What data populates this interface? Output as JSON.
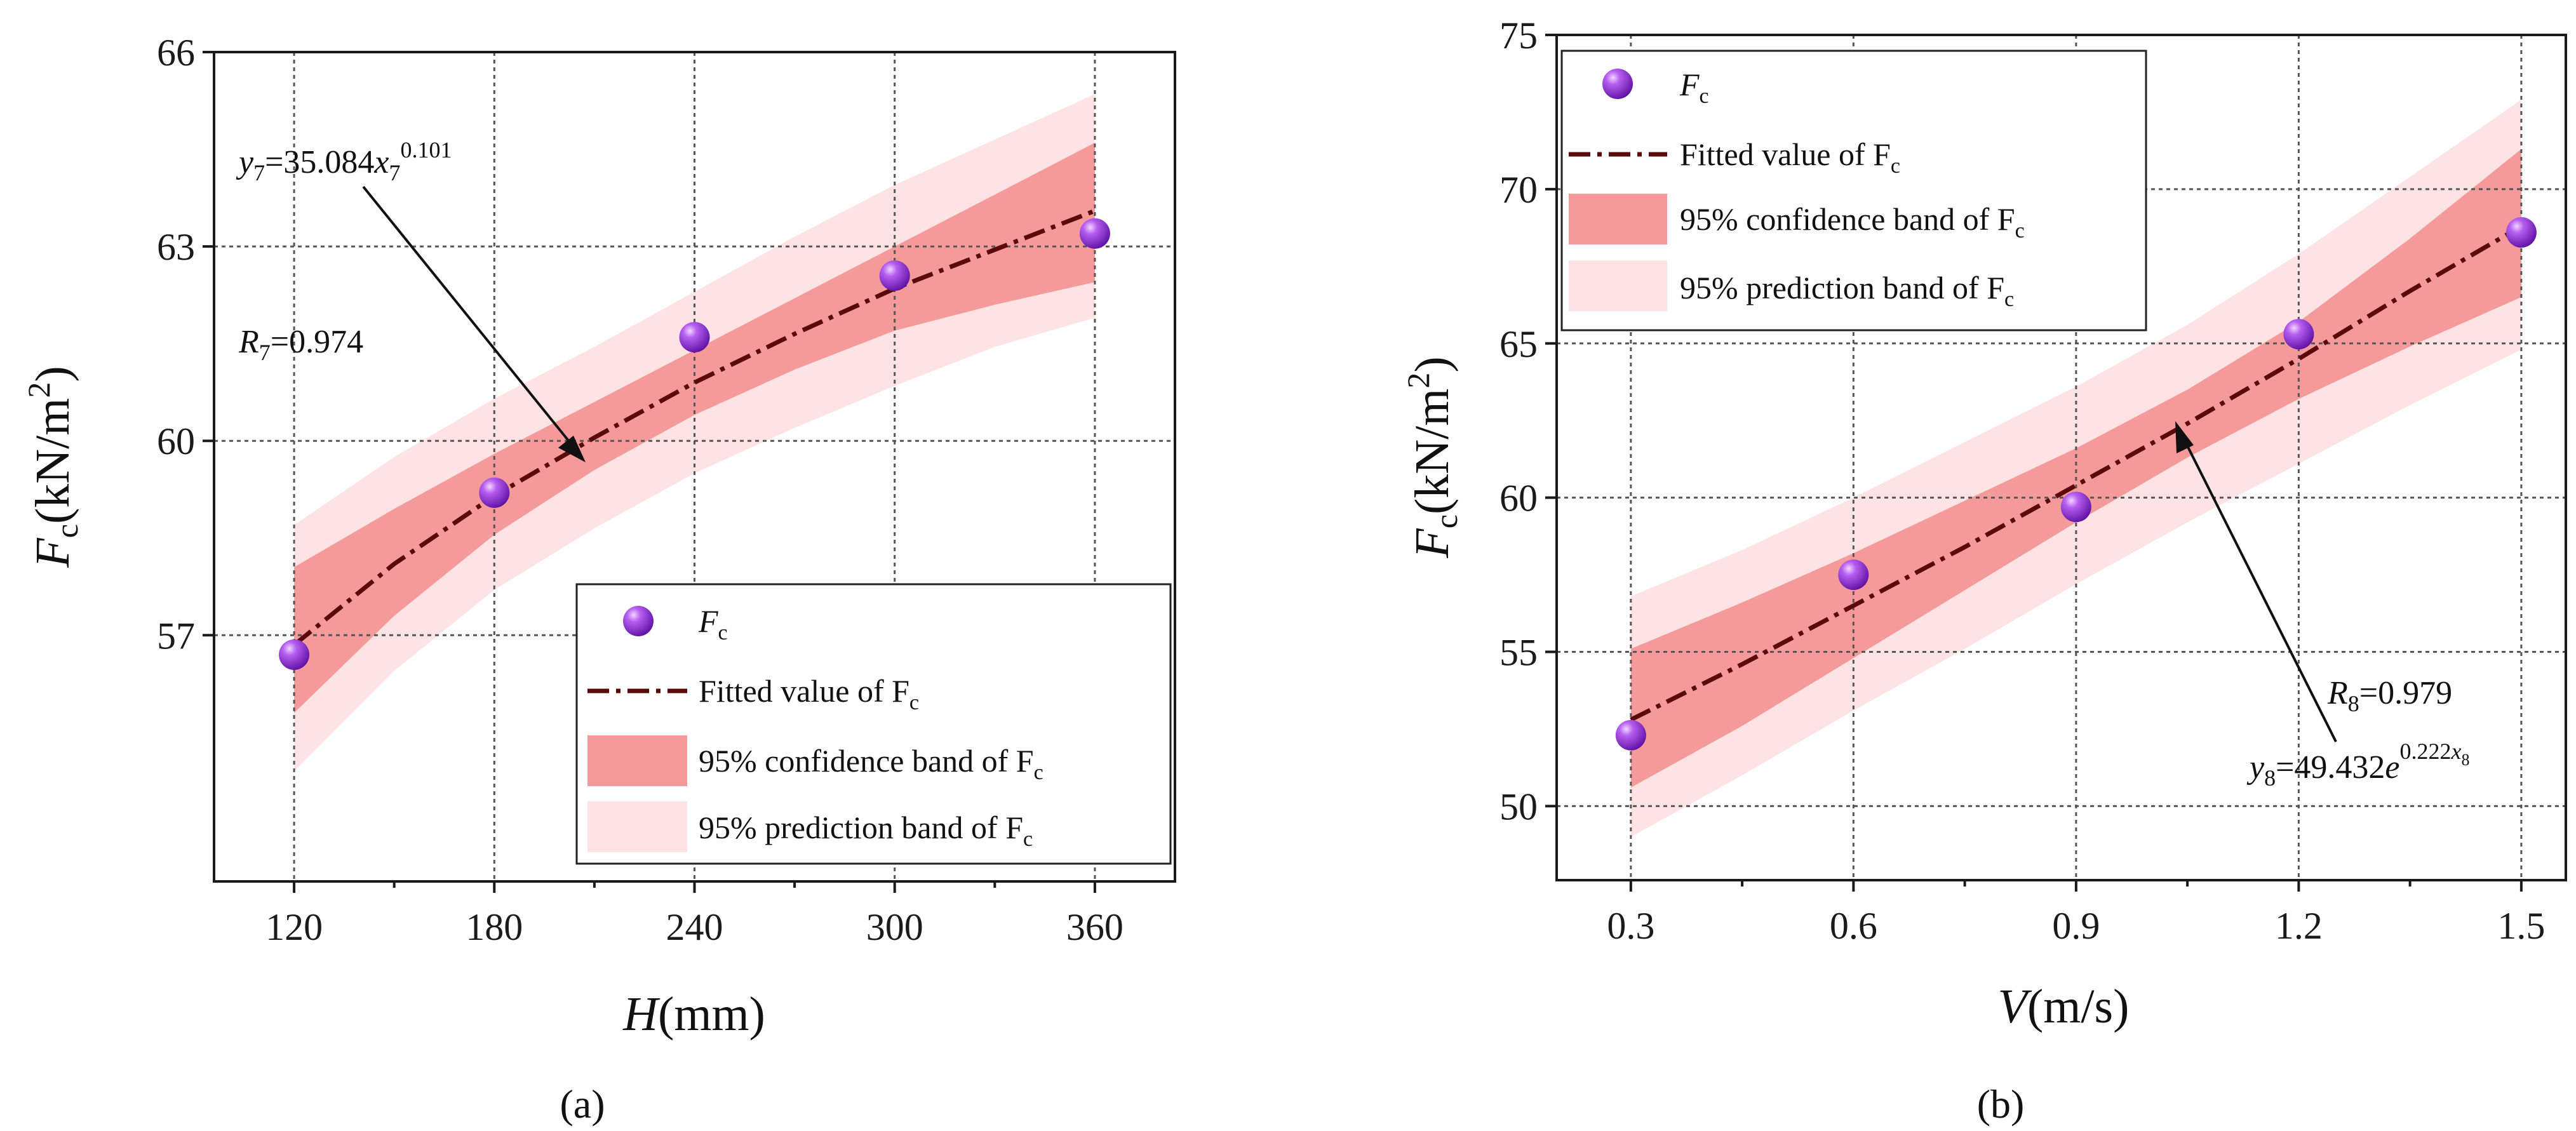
{
  "colors": {
    "confidence": "#f59a9a",
    "prediction": "#fde3e3",
    "fit_line": "#5a0a0a",
    "point": "#8b1fd6",
    "grid": "#555555"
  },
  "chart_data": [
    {
      "type": "scatter",
      "panel_label": "(a)",
      "xlabel": {
        "var": "H",
        "unit": "(mm)"
      },
      "ylabel": {
        "var": "F",
        "sub": "c",
        "unit": "(kN/m",
        "sup": "2",
        "close": ")"
      },
      "xlim": [
        96,
        384
      ],
      "ylim": [
        53.2,
        66
      ],
      "xticks": [
        "120",
        "180",
        "240",
        "300",
        "360"
      ],
      "yticks": [
        "57",
        "60",
        "63",
        "66"
      ],
      "grid": true,
      "legend_position": "bottom-right",
      "series": [
        {
          "name": "F_c",
          "x": [
            120,
            180,
            240,
            300,
            360
          ],
          "y": [
            56.7,
            59.2,
            61.6,
            62.55,
            63.2
          ]
        }
      ],
      "fit": {
        "name": "Fitted value of F_c",
        "x": [
          120,
          150,
          180,
          210,
          240,
          270,
          300,
          330,
          360
        ],
        "y": [
          56.85,
          58.1,
          59.15,
          60.05,
          60.9,
          61.65,
          62.35,
          62.95,
          63.55
        ],
        "conf_lower": [
          55.8,
          57.3,
          58.55,
          59.55,
          60.4,
          61.1,
          61.7,
          62.1,
          62.45
        ],
        "conf_upper": [
          58.05,
          58.95,
          59.8,
          60.6,
          61.4,
          62.2,
          63.0,
          63.8,
          64.6
        ],
        "pred_lower": [
          54.9,
          56.45,
          57.7,
          58.65,
          59.5,
          60.2,
          60.85,
          61.45,
          61.9
        ],
        "pred_upper": [
          58.7,
          59.75,
          60.65,
          61.45,
          62.3,
          63.15,
          63.95,
          64.65,
          65.35
        ]
      },
      "legend": {
        "points": {
          "label": "F",
          "sub": "c"
        },
        "fit": {
          "label": "Fitted value of F",
          "sub": "c"
        },
        "confidence": {
          "label": "95% confidence band of F",
          "sub": "c"
        },
        "prediction": {
          "label": "95% prediction band of F",
          "sub": "c"
        }
      },
      "annotations": {
        "equation": {
          "lhs": "y",
          "lhs_sub": "7",
          "mid": "=35.084",
          "x": "x",
          "x_sub": "7",
          "exp": "0.101"
        },
        "r_value": {
          "label": "R",
          "sub": "7",
          "value": "=0.974"
        }
      }
    },
    {
      "type": "scatter",
      "panel_label": "(b)",
      "xlabel": {
        "var": "V",
        "unit": "(m/s)"
      },
      "ylabel": {
        "var": "F",
        "sub": "c",
        "unit": "(kN/m",
        "sup": "2",
        "close": ")"
      },
      "xlim": [
        0.2,
        1.56
      ],
      "ylim": [
        47.6,
        75
      ],
      "xticks": [
        "0.3",
        "0.6",
        "0.9",
        "1.2",
        "1.5"
      ],
      "yticks": [
        "50",
        "55",
        "60",
        "65",
        "70",
        "75"
      ],
      "grid": true,
      "legend_position": "top-left",
      "series": [
        {
          "name": "F_c",
          "x": [
            0.3,
            0.6,
            0.9,
            1.2,
            1.5
          ],
          "y": [
            52.3,
            57.5,
            59.7,
            65.3,
            68.6
          ]
        }
      ],
      "fit": {
        "name": "Fitted value of F_c",
        "x": [
          0.3,
          0.45,
          0.6,
          0.75,
          0.9,
          1.05,
          1.2,
          1.35,
          1.5
        ],
        "y": [
          52.8,
          54.6,
          56.5,
          58.4,
          60.4,
          62.4,
          64.5,
          66.7,
          68.8
        ],
        "conf_lower": [
          50.6,
          52.6,
          54.8,
          57.0,
          59.2,
          61.3,
          63.2,
          64.9,
          66.5
        ],
        "conf_upper": [
          55.1,
          56.6,
          58.2,
          59.9,
          61.6,
          63.5,
          65.7,
          68.4,
          71.3
        ],
        "pred_lower": [
          49.0,
          51.0,
          53.1,
          55.1,
          57.2,
          59.2,
          61.1,
          63.0,
          64.8
        ],
        "pred_upper": [
          56.8,
          58.3,
          60.0,
          61.8,
          63.6,
          65.6,
          67.9,
          70.4,
          72.9
        ]
      },
      "legend": {
        "points": {
          "label": "F",
          "sub": "c"
        },
        "fit": {
          "label": "Fitted value of F",
          "sub": "c"
        },
        "confidence": {
          "label": "95% confidence band of F",
          "sub": "c"
        },
        "prediction": {
          "label": "95% prediction band of F",
          "sub": "c"
        }
      },
      "annotations": {
        "r_value": {
          "label": "R",
          "sub": "8",
          "value": "=0.979"
        },
        "equation": {
          "lhs": "y",
          "lhs_sub": "8",
          "mid": "=49.432",
          "e": "e",
          "exp": "0.222",
          "exp_x": "x",
          "exp_x_sub": "8"
        }
      }
    }
  ]
}
